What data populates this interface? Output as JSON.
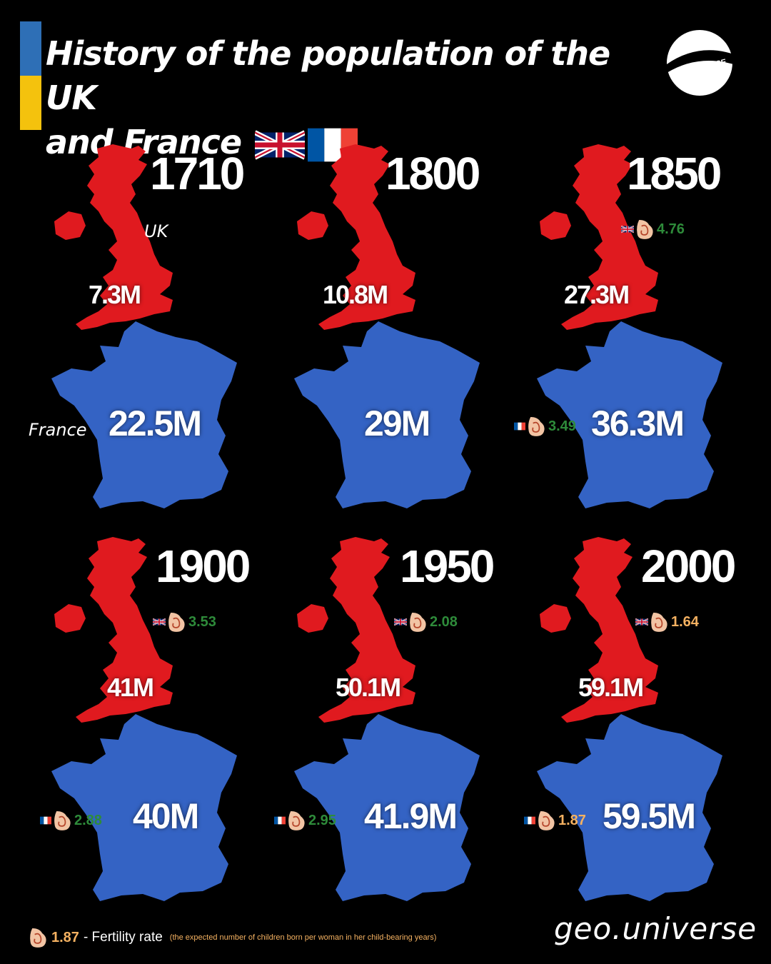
{
  "header": {
    "title_line1": "History of the population of the UK",
    "title_line2": "and France",
    "logo_text": "GEOUNIVERSE"
  },
  "labels": {
    "uk": "UK",
    "france": "France"
  },
  "panels": [
    {
      "year": "1710",
      "uk": "7.3M",
      "france": "22.5M"
    },
    {
      "year": "1800",
      "uk": "10.8M",
      "france": "29M"
    },
    {
      "year": "1850",
      "uk": "27.3M",
      "france": "36.3M",
      "uk_fertility": "4.76",
      "fr_fertility": "3.49"
    },
    {
      "year": "1900",
      "uk": "41M",
      "france": "40M",
      "uk_fertility": "3.53",
      "fr_fertility": "2.88"
    },
    {
      "year": "1950",
      "uk": "50.1M",
      "france": "41.9M",
      "uk_fertility": "2.08",
      "fr_fertility": "2.95"
    },
    {
      "year": "2000",
      "uk": "59.1M",
      "france": "59.5M",
      "uk_fertility": "1.64",
      "fr_fertility": "1.87"
    }
  ],
  "legend": {
    "value": "1.87",
    "text": "- Fertility rate",
    "note": "(the expected number of children born per woman in her child-bearing years)"
  },
  "brand": "geo.universe",
  "colors": {
    "uk_map": "#e01a1f",
    "france_map": "#3463c4",
    "fertility_high": "#2e8b3a",
    "fertility_low": "#f4b161",
    "stripe_blue": "#2e6fb6",
    "stripe_yellow": "#f4c20d"
  },
  "icons": [
    "uk-flag-icon",
    "france-flag-icon",
    "pregnant-belly-icon",
    "geouniverse-logo"
  ]
}
